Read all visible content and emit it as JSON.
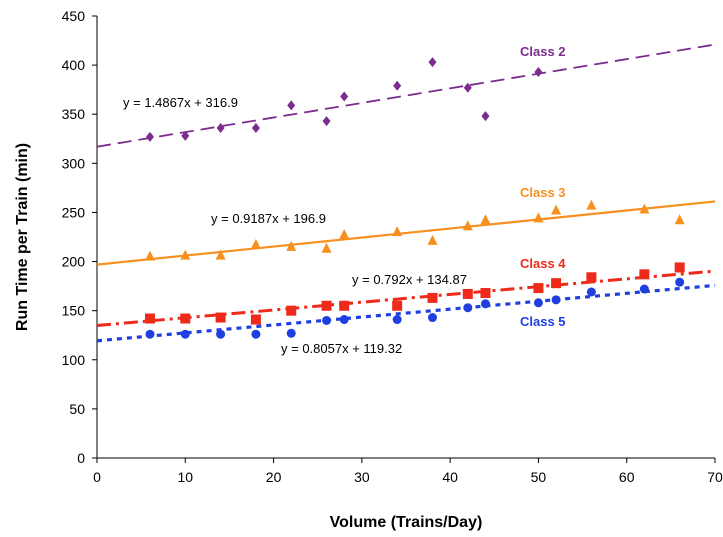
{
  "chart_data": {
    "type": "scatter",
    "title": "",
    "xlabel": "Volume (Trains/Day)",
    "ylabel": "Run Time per Train (min)",
    "xlim": [
      0,
      70
    ],
    "ylim": [
      0,
      450
    ],
    "x_ticks": [
      "0",
      "10",
      "20",
      "30",
      "40",
      "50",
      "60",
      "70"
    ],
    "y_ticks": [
      "0",
      "50",
      "100",
      "150",
      "200",
      "250",
      "300",
      "350",
      "400",
      "450"
    ],
    "grid": false,
    "series": [
      {
        "name": "Class 2",
        "color": "#7B2C8E",
        "marker": "diamond",
        "line_style": "dashed",
        "trend": {
          "slope": 1.4867,
          "intercept": 316.9
        },
        "equation": "y = 1.4867x + 316.9",
        "points": [
          [
            6,
            327
          ],
          [
            10,
            328
          ],
          [
            14,
            336
          ],
          [
            18,
            336
          ],
          [
            22,
            359
          ],
          [
            26,
            343
          ],
          [
            28,
            368
          ],
          [
            34,
            379
          ],
          [
            38,
            403
          ],
          [
            42,
            377
          ],
          [
            44,
            348
          ],
          [
            50,
            393
          ]
        ]
      },
      {
        "name": "Class 3",
        "color": "#F7901E",
        "marker": "triangle",
        "line_style": "solid",
        "trend": {
          "slope": 0.9187,
          "intercept": 196.9
        },
        "equation": "y = 0.9187x + 196.9",
        "points": [
          [
            6,
            205
          ],
          [
            10,
            206
          ],
          [
            14,
            206
          ],
          [
            18,
            217
          ],
          [
            22,
            215
          ],
          [
            26,
            213
          ],
          [
            28,
            227
          ],
          [
            34,
            230
          ],
          [
            38,
            221
          ],
          [
            42,
            236
          ],
          [
            44,
            242
          ],
          [
            50,
            244
          ],
          [
            52,
            252
          ],
          [
            56,
            257
          ],
          [
            62,
            253
          ],
          [
            66,
            242
          ]
        ]
      },
      {
        "name": "Class 4",
        "color": "#EE2A1B",
        "marker": "square",
        "line_style": "dash-dot",
        "trend": {
          "slope": 0.792,
          "intercept": 134.87
        },
        "equation": "y = 0.792x + 134.87",
        "points": [
          [
            6,
            142
          ],
          [
            10,
            142
          ],
          [
            14,
            143
          ],
          [
            18,
            141
          ],
          [
            22,
            150
          ],
          [
            26,
            155
          ],
          [
            28,
            155
          ],
          [
            34,
            155
          ],
          [
            38,
            163
          ],
          [
            42,
            167
          ],
          [
            44,
            168
          ],
          [
            50,
            173
          ],
          [
            52,
            178
          ],
          [
            56,
            184
          ],
          [
            62,
            187
          ],
          [
            66,
            194
          ]
        ]
      },
      {
        "name": "Class 5",
        "color": "#1F3FE0",
        "marker": "circle",
        "line_style": "dotted",
        "trend": {
          "slope": 0.8057,
          "intercept": 119.32
        },
        "equation": "y = 0.8057x + 119.32",
        "points": [
          [
            6,
            126
          ],
          [
            10,
            126
          ],
          [
            14,
            126
          ],
          [
            18,
            126
          ],
          [
            22,
            127
          ],
          [
            26,
            140
          ],
          [
            28,
            141
          ],
          [
            34,
            141
          ],
          [
            38,
            143
          ],
          [
            42,
            153
          ],
          [
            44,
            157
          ],
          [
            50,
            158
          ],
          [
            52,
            161
          ],
          [
            56,
            169
          ],
          [
            62,
            172
          ],
          [
            66,
            179
          ]
        ]
      }
    ]
  }
}
